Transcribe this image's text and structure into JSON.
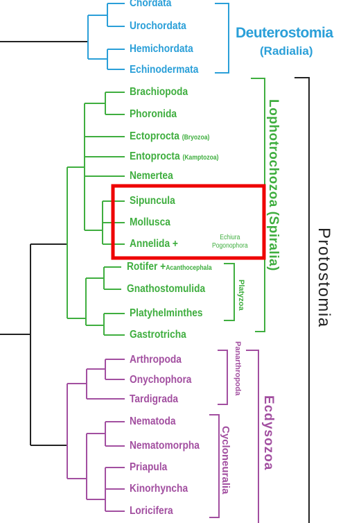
{
  "taxa": {
    "chordata": "Chordata",
    "urochordata": "Urochordata",
    "hemichordata": "Hemichordata",
    "echinodermata": "Echinodermata",
    "brachiopoda": "Brachiopoda",
    "phoronida": "Phoronida",
    "ectoprocta": "Ectoprocta",
    "ectoprocta_note": "(Bryozoa)",
    "entoprocta": "Entoprocta",
    "entoprocta_note": "(Kamptozoa)",
    "nemertea": "Nemertea",
    "sipuncula": "Sipuncula",
    "mollusca": "Mollusca",
    "annelida": "Annelida +",
    "annelida_note_1": "Echiura",
    "annelida_note_2": "Pogonophora",
    "rotifer": "Rotifer +",
    "rotifer_note": "Acanthocephala",
    "gnathostomulida": "Gnathostomulida",
    "platyhelminthes": "Platyhelminthes",
    "gastrotricha": "Gastrotricha",
    "arthropoda": "Arthropoda",
    "onychophora": "Onychophora",
    "tardigrada": "Tardigrada",
    "nematoda": "Nematoda",
    "nematomorpha": "Nematomorpha",
    "priapula": "Priapula",
    "kinorhyncha": "Kinorhyncha",
    "loricifera": "Loricifera"
  },
  "groups": {
    "deuterostomia": "Deuterostomia",
    "radialia": "(Radialia)",
    "lophotrochozoa": "Lophotrochozoa (Spiralia)",
    "platyzoa": "Platyzoa",
    "panarthropoda": "Panarthropoda",
    "cycloneuralia": "Cycloneuralia",
    "ecdysozoa": "Ecdysozoa",
    "protostomia": "Protostomia"
  },
  "colors": {
    "deuterostome": "#2a9fd8",
    "lophotrochozoan": "#3fae3f",
    "ecdysozoan": "#a24fa0",
    "trunk": "#222222",
    "highlight": "#ee0000"
  }
}
